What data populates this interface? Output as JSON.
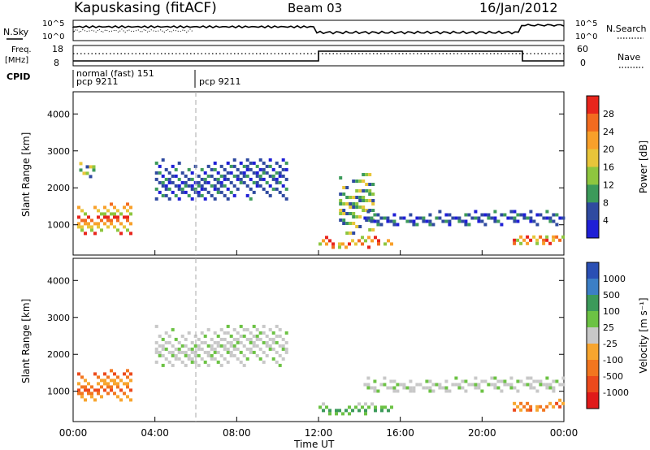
{
  "header": {
    "station": "Kapuskasing (fitACF)",
    "beam": "Beam 03",
    "date": "16/Jan/2012"
  },
  "summary_panels": {
    "nsky_label": "N.Sky",
    "nsky_ticks": [
      "10^5",
      "10^0"
    ],
    "nsearch_label": "N.Search",
    "nsearch_ticks": [
      "10^5",
      "10^0"
    ],
    "freq_label_1": "Freq.",
    "freq_label_2": "[MHz]",
    "freq_ticks": [
      "18",
      "8"
    ],
    "nave_label": "Nave",
    "nave_ticks": [
      "60",
      "0"
    ],
    "cpid_label": "CPID",
    "cpid_segments": [
      "normal (fast) 151",
      "pcp 9211",
      "pcp 9211"
    ]
  },
  "chart_data": [
    {
      "type": "heatmap",
      "title": "Power",
      "ylabel": "Slant Range [km]",
      "ylim": [
        180,
        4600
      ],
      "yticks": [
        1000,
        2000,
        3000,
        4000
      ],
      "xlim": [
        0,
        24
      ],
      "xticks": [
        "00:00",
        "04:00",
        "08:00",
        "12:00",
        "16:00",
        "20:00",
        "00:00"
      ],
      "colorbar": {
        "label": "Power [dB]",
        "ticks": [
          "28",
          "24",
          "20",
          "16",
          "12",
          "8",
          "4"
        ],
        "colors": [
          "#e8251c",
          "#f26b1f",
          "#f8a02a",
          "#e8c53a",
          "#8ec63f",
          "#3c9a5a",
          "#2f4aa0",
          "#1f1fd6"
        ]
      },
      "echo_regions": [
        {
          "t0": 0.2,
          "t1": 2.8,
          "r0": 750,
          "r1": 1600,
          "level": "high"
        },
        {
          "t0": 0.3,
          "t1": 1.0,
          "r0": 2300,
          "r1": 2700,
          "level": "mid"
        },
        {
          "t0": 4.0,
          "t1": 10.5,
          "r0": 1700,
          "r1": 2800,
          "level": "low"
        },
        {
          "t0": 12.0,
          "t1": 15.5,
          "r0": 400,
          "r1": 700,
          "level": "high"
        },
        {
          "t0": 13.0,
          "t1": 14.6,
          "r0": 800,
          "r1": 2400,
          "level": "mid"
        },
        {
          "t0": 14.2,
          "t1": 24.0,
          "r0": 1000,
          "r1": 1400,
          "level": "low"
        },
        {
          "t0": 21.5,
          "t1": 24.0,
          "r0": 450,
          "r1": 800,
          "level": "high"
        }
      ]
    },
    {
      "type": "heatmap",
      "title": "Velocity",
      "ylabel": "Slant Range [km]",
      "ylim": [
        180,
        4600
      ],
      "yticks": [
        1000,
        2000,
        3000,
        4000
      ],
      "xlim": [
        0,
        24
      ],
      "xlabel": "Time UT",
      "xticks": [
        "00:00",
        "04:00",
        "08:00",
        "12:00",
        "16:00",
        "20:00",
        "00:00"
      ],
      "colorbar": {
        "label": "Velocity [m s⁻¹]",
        "ticks": [
          "1000",
          "500",
          "100",
          "25",
          "-25",
          "-100",
          "-500",
          "-1000"
        ],
        "colors": [
          "#2a4fb4",
          "#3c7fc6",
          "#3c9a5a",
          "#6cc244",
          "#c8c8c8",
          "#f7a52e",
          "#f2761f",
          "#ec4a1c",
          "#e01a1a"
        ]
      },
      "echo_regions": [
        {
          "t0": 0.2,
          "t1": 2.8,
          "r0": 750,
          "r1": 1600,
          "level": "negative"
        },
        {
          "t0": 4.0,
          "t1": 10.5,
          "r0": 1700,
          "r1": 2800,
          "level": "ground"
        },
        {
          "t0": 12.0,
          "t1": 15.5,
          "r0": 400,
          "r1": 700,
          "level": "positive"
        },
        {
          "t0": 14.2,
          "t1": 24.0,
          "r0": 1000,
          "r1": 1400,
          "level": "ground"
        },
        {
          "t0": 21.5,
          "t1": 24.0,
          "r0": 450,
          "r1": 800,
          "level": "negative"
        }
      ]
    }
  ]
}
